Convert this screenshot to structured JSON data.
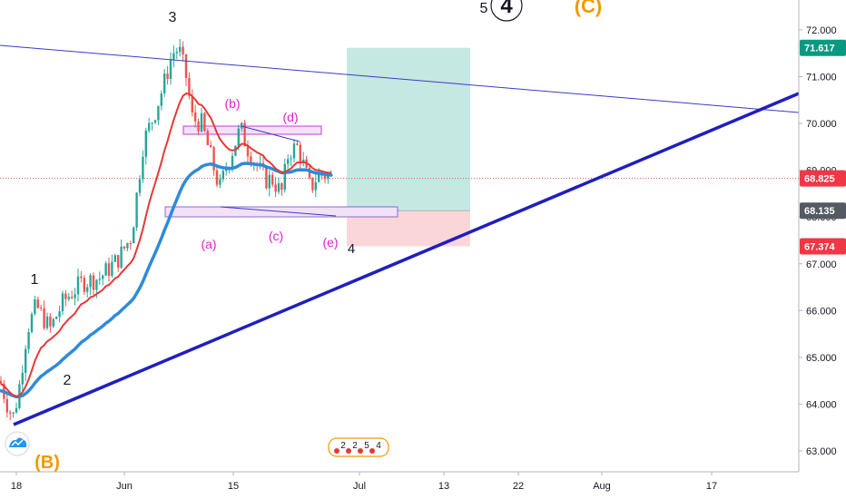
{
  "chart_data": {
    "type": "candlestick",
    "y_ticks": [
      63.0,
      64.0,
      65.0,
      66.0,
      67.0,
      68.0,
      69.0,
      70.0,
      71.0,
      72.0
    ],
    "y_tick_labels": [
      "63.000",
      "64.000",
      "65.000",
      "66.000",
      "67.000",
      "68.000",
      "69.000",
      "70.000",
      "71.000",
      "72.000"
    ],
    "ylim": [
      62.8,
      72.5
    ],
    "x_tick_labels": [
      "18",
      "Jun",
      "15",
      "Jul",
      "13",
      "22",
      "Aug",
      "17"
    ],
    "price_tags": [
      {
        "label": "71.617",
        "value": 71.617,
        "color": "#089981"
      },
      {
        "label": "68.825",
        "value": 68.825,
        "color": "#f23645"
      },
      {
        "label": "68.135",
        "value": 68.135,
        "color": "#555962"
      },
      {
        "label": "67.374",
        "value": 67.374,
        "color": "#f23645"
      }
    ],
    "wave_labels": [
      {
        "text": "3",
        "kind": "primary"
      },
      {
        "text": "1",
        "kind": "primary"
      },
      {
        "text": "2",
        "kind": "primary"
      },
      {
        "text": "4",
        "kind": "primary"
      },
      {
        "text": "5",
        "kind": "primary"
      },
      {
        "text": "(b)",
        "kind": "minor"
      },
      {
        "text": "(d)",
        "kind": "minor"
      },
      {
        "text": "(a)",
        "kind": "minor"
      },
      {
        "text": "(c)",
        "kind": "minor"
      },
      {
        "text": "(e)",
        "kind": "minor"
      },
      {
        "text": "4",
        "kind": "circled"
      },
      {
        "text": "(C)",
        "kind": "intermediate"
      },
      {
        "text": "(B)",
        "kind": "intermediate"
      }
    ],
    "position_tool": {
      "entry": 68.135,
      "target": 71.617,
      "stop": 67.374
    },
    "last_price": 68.825,
    "event_markers": [
      "2",
      "2",
      "5",
      "4"
    ]
  },
  "colors": {
    "up": "#26a69a",
    "down": "#ef5350",
    "ema_fast": "#e53935",
    "ema_slow": "#2e8bdb",
    "trend_thin": "#3a3acb",
    "trend_thick": "#1f1fbf",
    "minor_label": "#e020d0",
    "intermediate_label": "#f29900",
    "profit_zone": "#c5e8e3",
    "loss_zone": "#fbd6d8",
    "rect_zone": "#f3e1f7"
  },
  "logo": {
    "icon": "tradingview-cloud-icon"
  }
}
